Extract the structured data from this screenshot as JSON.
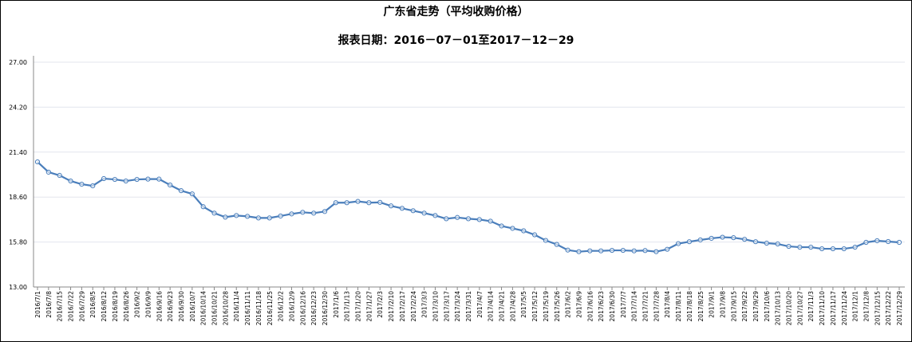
{
  "chart_data": {
    "type": "line",
    "title": "广东省走势（平均收购价格）",
    "subtitle": "报表日期：2016－07－01至2017－12－29",
    "xlabel": "",
    "ylabel": "",
    "ylim": [
      13.0,
      27.0
    ],
    "yticks": [
      "13.00",
      "15.80",
      "18.60",
      "21.40",
      "24.20",
      "27.00"
    ],
    "grid": true,
    "legend": "none",
    "color": "#4a7ebb",
    "categories": [
      "2016/7/1",
      "2016/7/8",
      "2016/7/15",
      "2016/7/22",
      "2016/7/29",
      "2016/8/5",
      "2016/8/12",
      "2016/8/19",
      "2016/8/26",
      "2016/9/2",
      "2016/9/9",
      "2016/9/16",
      "2016/9/23",
      "2016/9/30",
      "2016/10/7",
      "2016/10/14",
      "2016/10/21",
      "2016/10/28",
      "2016/11/4",
      "2016/11/11",
      "2016/11/18",
      "2016/11/25",
      "2016/12/2",
      "2016/12/9",
      "2016/12/16",
      "2016/12/23",
      "2016/12/30",
      "2017/1/6",
      "2017/1/13",
      "2017/1/20",
      "2017/1/27",
      "2017/2/3",
      "2017/2/10",
      "2017/2/17",
      "2017/2/24",
      "2017/3/3",
      "2017/3/10",
      "2017/3/17",
      "2017/3/24",
      "2017/3/31",
      "2017/4/7",
      "2017/4/14",
      "2017/4/21",
      "2017/4/28",
      "2017/5/5",
      "2017/5/12",
      "2017/5/19",
      "2017/5/26",
      "2017/6/2",
      "2017/6/9",
      "2017/6/16",
      "2017/6/23",
      "2017/6/30",
      "2017/7/7",
      "2017/7/14",
      "2017/7/21",
      "2017/7/28",
      "2017/8/4",
      "2017/8/11",
      "2017/8/18",
      "2017/8/25",
      "2017/9/1",
      "2017/9/8",
      "2017/9/15",
      "2017/9/22",
      "2017/9/29",
      "2017/10/6",
      "2017/10/13",
      "2017/10/20",
      "2017/10/27",
      "2017/11/3",
      "2017/11/10",
      "2017/11/17",
      "2017/11/24",
      "2017/12/1",
      "2017/12/8",
      "2017/12/15",
      "2017/12/22",
      "2017/12/29"
    ],
    "values": [
      20.79,
      20.15,
      19.95,
      19.6,
      19.4,
      19.3,
      19.75,
      19.7,
      19.6,
      19.7,
      19.72,
      19.72,
      19.35,
      19.0,
      18.8,
      18.0,
      17.6,
      17.35,
      17.45,
      17.4,
      17.3,
      17.3,
      17.42,
      17.55,
      17.65,
      17.6,
      17.7,
      18.25,
      18.25,
      18.33,
      18.25,
      18.27,
      18.05,
      17.9,
      17.75,
      17.6,
      17.45,
      17.25,
      17.33,
      17.25,
      17.2,
      17.1,
      16.8,
      16.65,
      16.5,
      16.25,
      15.9,
      15.65,
      15.3,
      15.2,
      15.25,
      15.25,
      15.28,
      15.28,
      15.25,
      15.27,
      15.2,
      15.35,
      15.7,
      15.82,
      15.93,
      16.03,
      16.1,
      16.07,
      15.97,
      15.82,
      15.73,
      15.68,
      15.53,
      15.48,
      15.48,
      15.38,
      15.38,
      15.38,
      15.48,
      15.78,
      15.88,
      15.83,
      15.78
    ]
  }
}
